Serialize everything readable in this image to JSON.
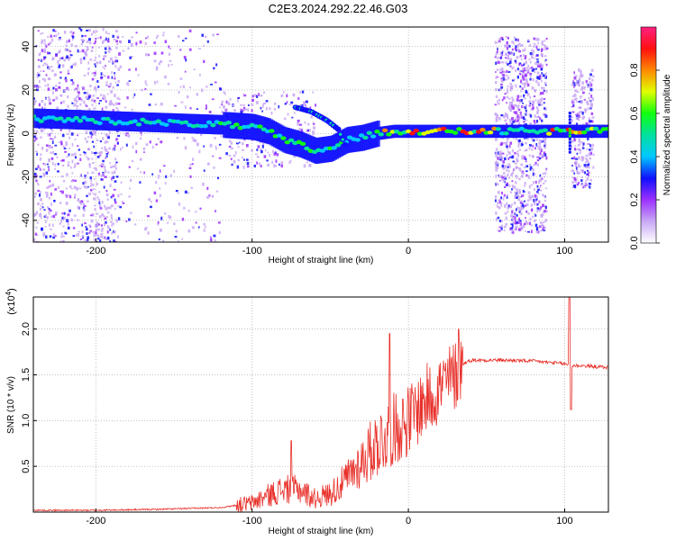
{
  "title": "C2E3.2024.292.22.46.G03",
  "chart_data": [
    {
      "type": "heatmap",
      "xlabel": "Height of straight line (km)",
      "ylabel": "Frequency (Hz)",
      "xlim": [
        -240,
        128
      ],
      "ylim": [
        -50,
        49
      ],
      "xticks": [
        -200,
        -100,
        0,
        100
      ],
      "yticks": [
        -40,
        -20,
        0,
        20,
        40
      ],
      "grid": true,
      "colorbar": {
        "label": "Normalized spectral amplitude",
        "ticks": [
          "0.0",
          "0.2",
          "0.4",
          "0.6",
          "0.8"
        ],
        "range": [
          0,
          1
        ],
        "colormap": "rainbow",
        "colors": [
          "#ffffff",
          "#c9a8f5",
          "#9b30ff",
          "#1010ff",
          "#00c8ff",
          "#00e0a0",
          "#10ff10",
          "#e0ff00",
          "#ff8800",
          "#ff1010",
          "#ff2080"
        ]
      },
      "ridge": {
        "x": [
          -240,
          -200,
          -160,
          -120,
          -100,
          -90,
          -80,
          -70,
          -60,
          -50,
          -40,
          -30,
          -20,
          -10,
          0,
          20,
          40,
          60,
          80,
          100,
          128
        ],
        "y": [
          7,
          6,
          5,
          4,
          3,
          1,
          -3,
          -5,
          -8,
          -7,
          -3,
          -2,
          0,
          1,
          1,
          1,
          1,
          1,
          1,
          1,
          1
        ]
      },
      "branch": {
        "x": [
          -72,
          -62,
          -52,
          -45,
          -40
        ],
        "y": [
          12,
          10,
          6,
          2,
          -6
        ]
      },
      "scatter_regions": [
        {
          "x": [
            -240,
            -185
          ],
          "y": [
            -50,
            49
          ],
          "density": "high"
        },
        {
          "x": [
            -185,
            -120
          ],
          "y": [
            -50,
            49
          ],
          "density": "low"
        },
        {
          "x": [
            -120,
            -60
          ],
          "y": [
            -15,
            20
          ],
          "density": "low"
        },
        {
          "x": [
            55,
            88
          ],
          "y": [
            -45,
            45
          ],
          "density": "high"
        },
        {
          "x": [
            104,
            118
          ],
          "y": [
            -25,
            30
          ],
          "density": "low"
        }
      ]
    },
    {
      "type": "line",
      "xlabel": "Height of straight line (km)",
      "ylabel": "SNR (10 * v/v)",
      "multiplier": "(x10",
      "multiplier_exp": "4",
      "multiplier_close": ")",
      "xlim": [
        -240,
        128
      ],
      "ylim": [
        0,
        2.35
      ],
      "xticks": [
        -200,
        -100,
        0,
        100
      ],
      "yticks": [
        "0.5",
        "1.0",
        "1.5",
        "2.0"
      ],
      "color": "#e8302a",
      "grid": true,
      "envelope": {
        "x": [
          -240,
          -200,
          -160,
          -120,
          -100,
          -90,
          -80,
          -70,
          -60,
          -50,
          -40,
          -30,
          -20,
          -10,
          0,
          10,
          20,
          30,
          35,
          40,
          60,
          80,
          100,
          104,
          110,
          128
        ],
        "y": [
          0.02,
          0.02,
          0.03,
          0.05,
          0.1,
          0.18,
          0.25,
          0.25,
          0.15,
          0.2,
          0.35,
          0.55,
          0.75,
          0.9,
          1.0,
          1.2,
          1.35,
          1.5,
          1.62,
          1.66,
          1.66,
          1.65,
          1.62,
          1.6,
          1.6,
          1.58
        ]
      },
      "noise_amplitude": 0.35,
      "spikes": [
        {
          "x": -75,
          "y": 0.78
        },
        {
          "x": -12,
          "y": 1.95
        },
        {
          "x": 32,
          "y": 2.0
        },
        {
          "x": 103,
          "y": 2.38
        },
        {
          "x": 104,
          "y": 1.12
        }
      ]
    }
  ]
}
